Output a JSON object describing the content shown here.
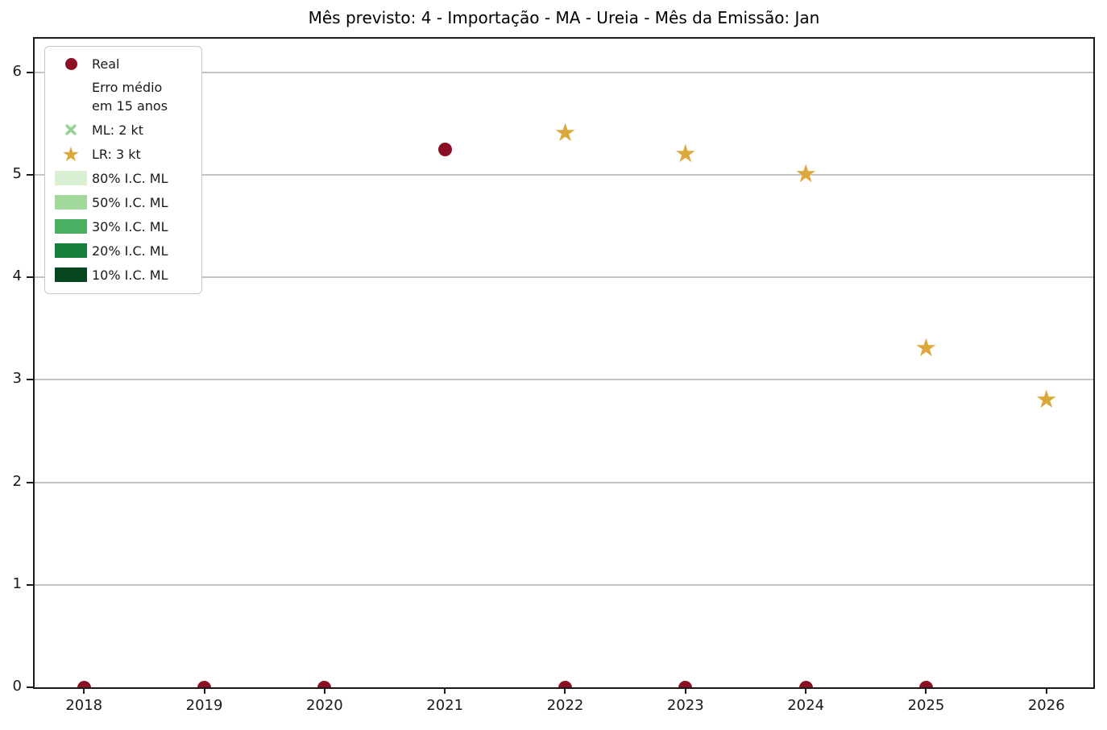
{
  "title": "Mês previsto: 4 - Importação - MA - Ureia - Mês da Emissão: Jan",
  "icons": {
    "star": "★",
    "circle": "●"
  },
  "colors": {
    "real": "#8b1023",
    "ml": "#98d494",
    "lr": "#dba83c",
    "ic": [
      "#d9f0d3",
      "#a1d99b",
      "#4bb062",
      "#157f3b",
      "#07471f"
    ],
    "grid": "#c4c4c4",
    "spine": "#1a1a1a"
  },
  "legend": {
    "real": "Real",
    "erro_line1": "Erro médio",
    "erro_line2": "em 15 anos",
    "ml": "ML: 2 kt",
    "lr": "LR: 3 kt",
    "ic": [
      "80% I.C. ML",
      "50% I.C. ML",
      "30% I.C. ML",
      "20% I.C. ML",
      "10% I.C. ML"
    ]
  },
  "chart_data": {
    "type": "scatter",
    "title": "Mês previsto: 4 - Importação - MA - Ureia - Mês da Emissão: Jan",
    "xlabel": "",
    "ylabel": "",
    "xlim": [
      2017.59,
      2026.39
    ],
    "ylim": [
      0,
      6.33
    ],
    "xticks": [
      2018,
      2019,
      2020,
      2021,
      2022,
      2023,
      2024,
      2025,
      2026
    ],
    "yticks": [
      0,
      1,
      2,
      3,
      4,
      5,
      6
    ],
    "grid": "horizontal",
    "legend_position": "upper-left",
    "series": [
      {
        "name": "Real",
        "marker": "circle",
        "color": "#8b1023",
        "x": [
          2018,
          2019,
          2020,
          2021,
          2022,
          2023,
          2024,
          2025
        ],
        "y": [
          0,
          0,
          0,
          5.25,
          0,
          0,
          0,
          0
        ]
      },
      {
        "name": "LR: 3 kt",
        "marker": "star",
        "color": "#dba83c",
        "x": [
          2022,
          2023,
          2024,
          2025,
          2026
        ],
        "y": [
          5.4,
          5.2,
          5.0,
          3.3,
          2.8
        ]
      },
      {
        "name": "ML: 2 kt",
        "marker": "x",
        "color": "#98d494",
        "x": [],
        "y": []
      }
    ]
  }
}
